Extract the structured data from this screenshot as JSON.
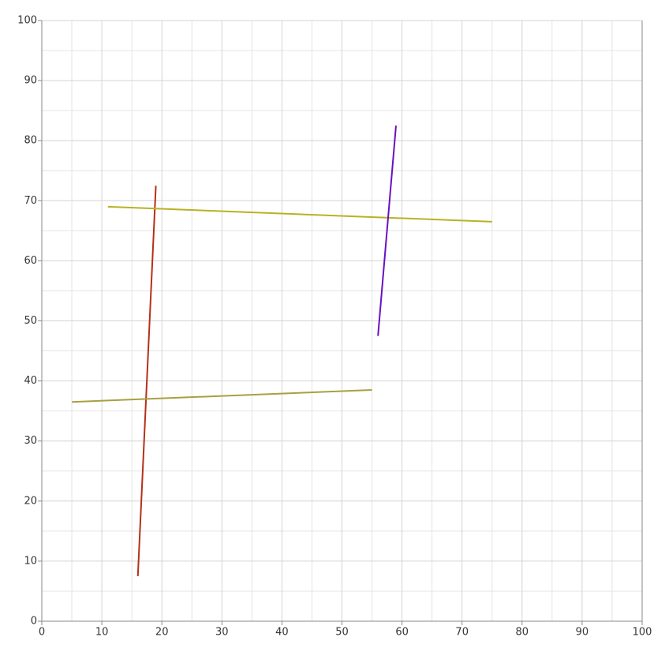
{
  "chart_data": {
    "type": "line",
    "series": [
      {
        "color": "#b5301a",
        "x": [
          16,
          19
        ],
        "values": [
          7.5,
          72.5
        ]
      },
      {
        "color": "#b8b224",
        "x": [
          11,
          75
        ],
        "values": [
          69,
          66.5
        ]
      },
      {
        "color": "#6a10c0",
        "x": [
          56,
          59
        ],
        "values": [
          47.5,
          82.5
        ]
      },
      {
        "color": "#a8a040",
        "x": [
          5,
          55
        ],
        "values": [
          36.5,
          38.5
        ]
      }
    ],
    "xlim": [
      0,
      100
    ],
    "ylim": [
      0,
      100
    ],
    "xticks": [
      0,
      10,
      20,
      30,
      40,
      50,
      60,
      70,
      80,
      90,
      100
    ],
    "yticks": [
      0,
      10,
      20,
      30,
      40,
      50,
      60,
      70,
      80,
      90,
      100
    ],
    "x_minor_ticks": [
      5,
      15,
      25,
      35,
      45,
      55,
      65,
      75,
      85,
      95
    ],
    "y_minor_ticks": [
      5,
      15,
      25,
      35,
      45,
      55,
      65,
      75,
      85,
      95
    ],
    "grid": true
  }
}
